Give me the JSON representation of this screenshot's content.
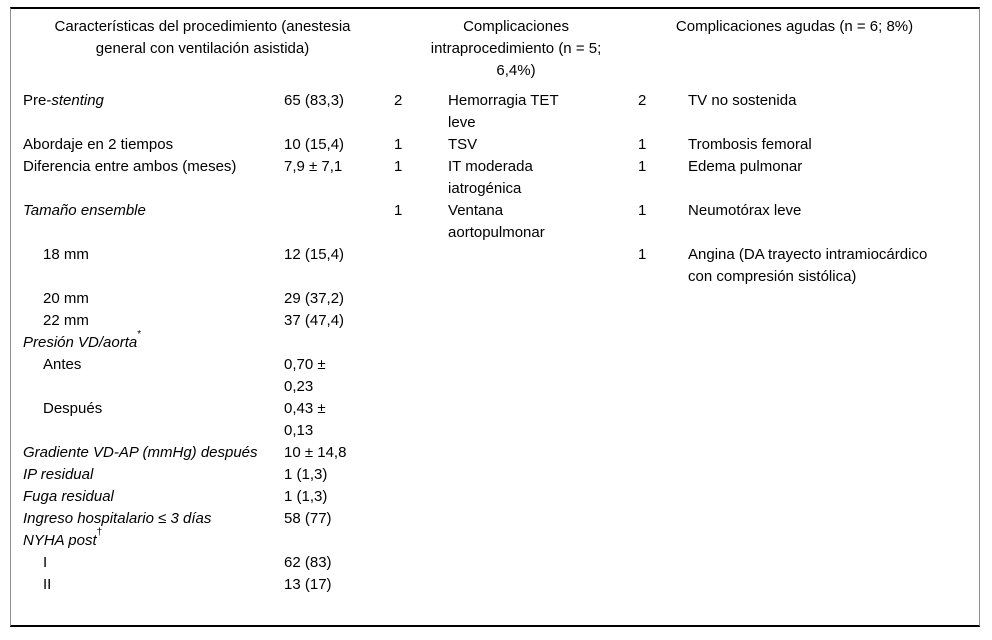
{
  "table": {
    "headers": [
      {
        "title": "Características del procedimiento (anestesia general con ventilación asistida)"
      },
      {
        "title": "Complicaciones intraprocedimiento (n = 5; 6,4%)"
      },
      {
        "title": "Complicaciones agudas (n = 6; 8%)"
      }
    ],
    "rows": [
      {
        "label_runs": [
          {
            "t": "Pre-",
            "i": false
          },
          {
            "t": "stenting",
            "i": true
          }
        ],
        "indent": false,
        "sup": "",
        "value": "65 (83,3)",
        "ip_n": "2",
        "ip_desc": "Hemorragia TET leve",
        "ac_n": "2",
        "ac_desc": "TV no sostenida"
      },
      {
        "label_runs": [
          {
            "t": "Abordaje en 2 tiempos",
            "i": false
          }
        ],
        "indent": false,
        "sup": "",
        "value": "10 (15,4)",
        "ip_n": "1",
        "ip_desc": "TSV",
        "ac_n": "1",
        "ac_desc": "Trombosis femoral"
      },
      {
        "label_runs": [
          {
            "t": "Diferencia entre ambos (meses)",
            "i": false
          }
        ],
        "indent": false,
        "sup": "",
        "value": "7,9 ± 7,1",
        "ip_n": "1",
        "ip_desc": "IT moderada iatrogénica",
        "ac_n": "1",
        "ac_desc": "Edema pulmonar"
      },
      {
        "label_runs": [
          {
            "t": "Tamaño ensemble",
            "i": true
          }
        ],
        "indent": false,
        "sup": "",
        "value": "",
        "ip_n": "1",
        "ip_desc": "Ventana aortopulmonar",
        "ac_n": "1",
        "ac_desc": "Neumotórax leve"
      },
      {
        "label_runs": [
          {
            "t": "18 mm",
            "i": false
          }
        ],
        "indent": true,
        "sup": "",
        "value": "12 (15,4)",
        "ip_n": "",
        "ip_desc": "",
        "ac_n": "1",
        "ac_desc": "Angina (DA trayecto intramiocárdico con compresión sistólica)"
      },
      {
        "label_runs": [
          {
            "t": "20 mm",
            "i": false
          }
        ],
        "indent": true,
        "sup": "",
        "value": "29 (37,2)",
        "ip_n": "",
        "ip_desc": "",
        "ac_n": "",
        "ac_desc": ""
      },
      {
        "label_runs": [
          {
            "t": "22 mm",
            "i": false
          }
        ],
        "indent": true,
        "sup": "",
        "value": "37 (47,4)",
        "ip_n": "",
        "ip_desc": "",
        "ac_n": "",
        "ac_desc": ""
      },
      {
        "label_runs": [
          {
            "t": "Presión VD/aorta",
            "i": true
          }
        ],
        "indent": false,
        "sup": "*",
        "value": "",
        "ip_n": "",
        "ip_desc": "",
        "ac_n": "",
        "ac_desc": ""
      },
      {
        "label_runs": [
          {
            "t": "Antes",
            "i": false
          }
        ],
        "indent": true,
        "sup": "",
        "value": "0,70 ± 0,23",
        "ip_n": "",
        "ip_desc": "",
        "ac_n": "",
        "ac_desc": ""
      },
      {
        "label_runs": [
          {
            "t": "Después",
            "i": false
          }
        ],
        "indent": true,
        "sup": "",
        "value": "0,43 ± 0,13",
        "ip_n": "",
        "ip_desc": "",
        "ac_n": "",
        "ac_desc": ""
      },
      {
        "label_runs": [
          {
            "t": "Gradiente VD-AP (mmHg) después",
            "i": true
          }
        ],
        "indent": false,
        "sup": "",
        "value": "10 ± 14,8",
        "ip_n": "",
        "ip_desc": "",
        "ac_n": "",
        "ac_desc": ""
      },
      {
        "label_runs": [
          {
            "t": "IP residual",
            "i": true
          }
        ],
        "indent": false,
        "sup": "",
        "value": "1 (1,3)",
        "ip_n": "",
        "ip_desc": "",
        "ac_n": "",
        "ac_desc": ""
      },
      {
        "label_runs": [
          {
            "t": "Fuga residual",
            "i": true
          }
        ],
        "indent": false,
        "sup": "",
        "value": "1 (1,3)",
        "ip_n": "",
        "ip_desc": "",
        "ac_n": "",
        "ac_desc": ""
      },
      {
        "label_runs": [
          {
            "t": "Ingreso hospitalario ≤ 3 días",
            "i": true
          }
        ],
        "indent": false,
        "sup": "",
        "value": "58 (77)",
        "ip_n": "",
        "ip_desc": "",
        "ac_n": "",
        "ac_desc": ""
      },
      {
        "label_runs": [
          {
            "t": "NYHA post",
            "i": true
          }
        ],
        "indent": false,
        "sup": "†",
        "value": "",
        "ip_n": "",
        "ip_desc": "",
        "ac_n": "",
        "ac_desc": ""
      },
      {
        "label_runs": [
          {
            "t": "I",
            "i": false
          }
        ],
        "indent": true,
        "sup": "",
        "value": "62 (83)",
        "ip_n": "",
        "ip_desc": "",
        "ac_n": "",
        "ac_desc": ""
      },
      {
        "label_runs": [
          {
            "t": "II",
            "i": false
          }
        ],
        "indent": true,
        "sup": "",
        "value": "13 (17)",
        "ip_n": "",
        "ip_desc": "",
        "ac_n": "",
        "ac_desc": ""
      }
    ]
  }
}
